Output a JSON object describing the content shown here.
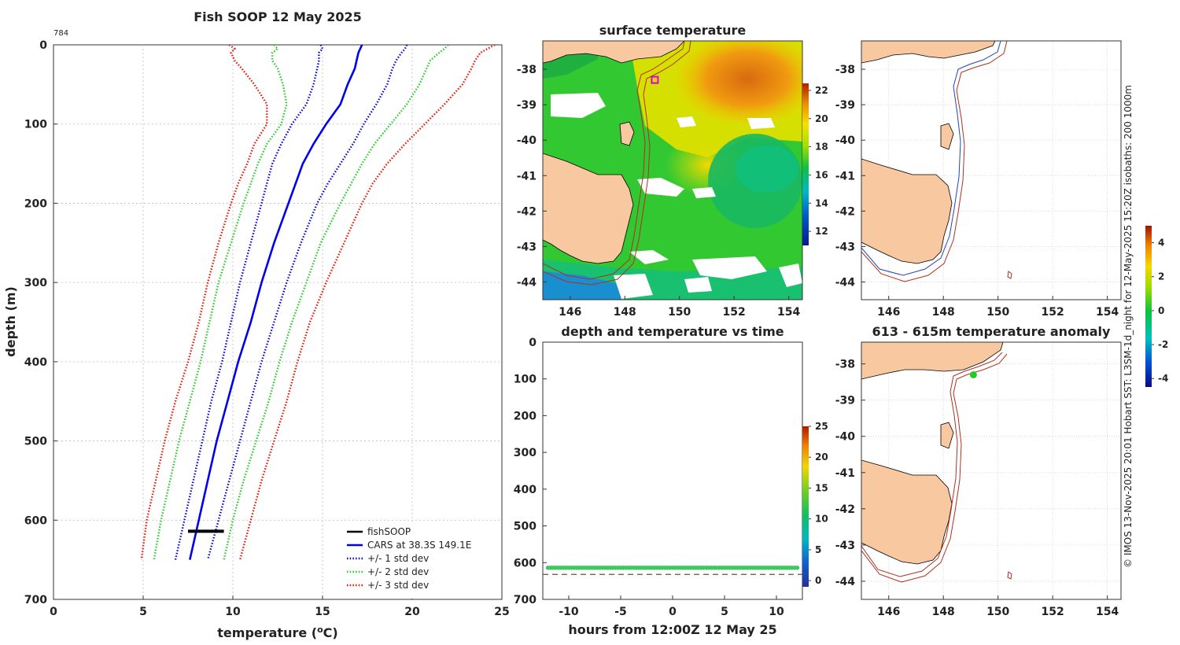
{
  "header": {
    "title": "Fish SOOP 12 May 2025",
    "corner_id": "784",
    "side_credit": "© IMOS 13-Nov-2025 20:01 Hobart SST: L3SM-1d_night for 12-May-2025 15:20Z isobaths: 200  1000m"
  },
  "colors": {
    "std1": "#0000dd",
    "std2": "#22cc22",
    "std3": "#ee1100",
    "cars": "#0000ee",
    "fish": "#000000",
    "land": "#f8c8a0",
    "iso200": "#2244bb",
    "iso1000": "#b03020"
  },
  "chart_data": [
    {
      "id": "profile",
      "type": "line",
      "title": "Fish SOOP 12 May 2025",
      "xlabel_main": "temperature (",
      "xlabel_sup": "o",
      "xlabel_tail": "C)",
      "ylabel": "depth (m)",
      "xlim": [
        0,
        25
      ],
      "ylim": [
        700,
        0
      ],
      "xticks": [
        0,
        5,
        10,
        15,
        20,
        25
      ],
      "yticks": [
        0,
        100,
        200,
        300,
        400,
        500,
        600,
        700
      ],
      "grid": true,
      "legend_position": "bottom-right",
      "depth": [
        0,
        5,
        10,
        20,
        30,
        50,
        75,
        100,
        125,
        150,
        175,
        200,
        250,
        300,
        350,
        400,
        450,
        500,
        550,
        600,
        650
      ],
      "series": [
        {
          "name": "CARS at 38.3S 149.1E",
          "style": "solid",
          "color": "#0000ee",
          "values": [
            17.2,
            17.1,
            17.0,
            16.9,
            16.8,
            16.4,
            16.0,
            15.2,
            14.5,
            13.9,
            13.5,
            13.1,
            12.3,
            11.6,
            11.0,
            10.3,
            9.7,
            9.1,
            8.6,
            8.1,
            7.6
          ]
        },
        {
          "name": "+1 std",
          "style": "dotted",
          "color": "#0000dd",
          "values": [
            14.9,
            15.0,
            14.8,
            14.8,
            14.7,
            14.5,
            14.1,
            13.3,
            12.7,
            12.2,
            11.9,
            11.6,
            11.0,
            10.4,
            9.9,
            9.4,
            8.8,
            8.3,
            7.8,
            7.3,
            6.8
          ]
        },
        {
          "name": "-1 std",
          "style": "dotted",
          "color": "#0000dd",
          "values": [
            19.7,
            19.6,
            19.4,
            19.1,
            18.9,
            18.6,
            18.0,
            17.3,
            16.7,
            16.0,
            15.3,
            14.7,
            13.8,
            13.0,
            12.3,
            11.6,
            11.0,
            10.4,
            9.8,
            9.2,
            8.6
          ]
        },
        {
          "name": "+2 std",
          "style": "dotted",
          "color": "#22cc22",
          "values": [
            12.3,
            12.5,
            12.2,
            12.2,
            12.5,
            12.8,
            13.0,
            12.7,
            11.9,
            11.4,
            11.0,
            10.6,
            9.9,
            9.2,
            8.7,
            8.2,
            7.6,
            7.0,
            6.5,
            6.0,
            5.6
          ]
        },
        {
          "name": "-2 std",
          "style": "dotted",
          "color": "#22cc22",
          "values": [
            22.0,
            21.8,
            21.5,
            21.0,
            20.8,
            20.4,
            19.7,
            18.8,
            17.9,
            17.2,
            16.6,
            16.0,
            14.9,
            14.1,
            13.3,
            12.6,
            12.0,
            11.3,
            10.6,
            10.0,
            9.5
          ]
        },
        {
          "name": "+3 std",
          "style": "dotted",
          "color": "#ee1100",
          "values": [
            9.8,
            10.1,
            9.9,
            10.1,
            10.5,
            11.2,
            11.9,
            11.9,
            11.2,
            10.8,
            10.3,
            9.9,
            9.2,
            8.6,
            8.1,
            7.5,
            6.8,
            6.2,
            5.7,
            5.2,
            4.9
          ]
        },
        {
          "name": "-3 std",
          "style": "dotted",
          "color": "#ee1100",
          "values": [
            24.6,
            24.2,
            23.8,
            23.5,
            23.3,
            22.8,
            21.8,
            20.7,
            19.6,
            18.6,
            17.8,
            17.2,
            16.2,
            15.2,
            14.3,
            13.6,
            13.0,
            12.3,
            11.6,
            11.0,
            10.4
          ]
        }
      ],
      "fishsoop": {
        "name": "fishSOOP",
        "temp_range": [
          7.5,
          9.5
        ],
        "depth": 614
      },
      "legend": [
        {
          "label": "fishSOOP",
          "style": "solid",
          "color": "#000000"
        },
        {
          "label": "CARS at 38.3S 149.1E",
          "style": "solid",
          "color": "#0000ee"
        },
        {
          "label": "+/- 1 std dev",
          "style": "dotted",
          "color": "#0000dd"
        },
        {
          "label": "+/- 2 std dev",
          "style": "dotted",
          "color": "#22cc22"
        },
        {
          "label": "+/- 3 std dev",
          "style": "dotted",
          "color": "#ee1100"
        }
      ]
    },
    {
      "id": "sst_map",
      "type": "heatmap",
      "title": "surface temperature",
      "xlim": [
        145,
        154.5
      ],
      "ylim": [
        -44.5,
        -37.2
      ],
      "xticks": [
        146,
        148,
        150,
        152,
        154
      ],
      "yticks": [
        -38,
        -39,
        -40,
        -41,
        -42,
        -43,
        -44
      ],
      "colorbar": {
        "ticks": [
          12,
          14,
          16,
          18,
          20,
          22
        ],
        "range": [
          11,
          22.5
        ]
      },
      "marker": {
        "lon": 149.1,
        "lat": -38.3,
        "shape": "square",
        "color": "#dd00dd"
      }
    },
    {
      "id": "depth_time",
      "type": "scatter",
      "title": "depth and temperature vs time",
      "xlabel": "hours from 12:00Z 12 May 25",
      "xlim": [
        -12.5,
        12.5
      ],
      "ylim": [
        700,
        0
      ],
      "xticks": [
        -10,
        -5,
        0,
        5,
        10
      ],
      "yticks": [
        0,
        100,
        200,
        300,
        400,
        500,
        600,
        700
      ],
      "colorbar": {
        "ticks": [
          0,
          5,
          10,
          15,
          20,
          25
        ],
        "range": [
          -1,
          25
        ]
      },
      "series": [
        {
          "name": "fishSOOP depth",
          "hours_range": [
            -12,
            12
          ],
          "depth": 614,
          "temperature": 8.4
        }
      ],
      "bottom_depth_dashed": 632
    },
    {
      "id": "isobath_map",
      "type": "heatmap",
      "title": "",
      "xlim": [
        145,
        154.5
      ],
      "ylim": [
        -44.5,
        -37.2
      ],
      "xticks": [
        146,
        148,
        150,
        152,
        154
      ],
      "yticks": [
        -38,
        -39,
        -40,
        -41,
        -42,
        -43,
        -44
      ]
    },
    {
      "id": "anomaly_map",
      "type": "heatmap",
      "title": "613 - 615m temperature anomaly",
      "xlim": [
        145,
        154.5
      ],
      "ylim": [
        -44.5,
        -37.4
      ],
      "xticks": [
        146,
        148,
        150,
        152,
        154
      ],
      "yticks": [
        -38,
        -39,
        -40,
        -41,
        -42,
        -43,
        -44
      ],
      "colorbar": {
        "ticks": [
          4,
          2,
          0,
          -2,
          -4
        ],
        "range": [
          -4.5,
          5
        ]
      },
      "marker": {
        "lon": 149.1,
        "lat": -38.3,
        "shape": "dot",
        "color": "#22cc22"
      }
    }
  ]
}
